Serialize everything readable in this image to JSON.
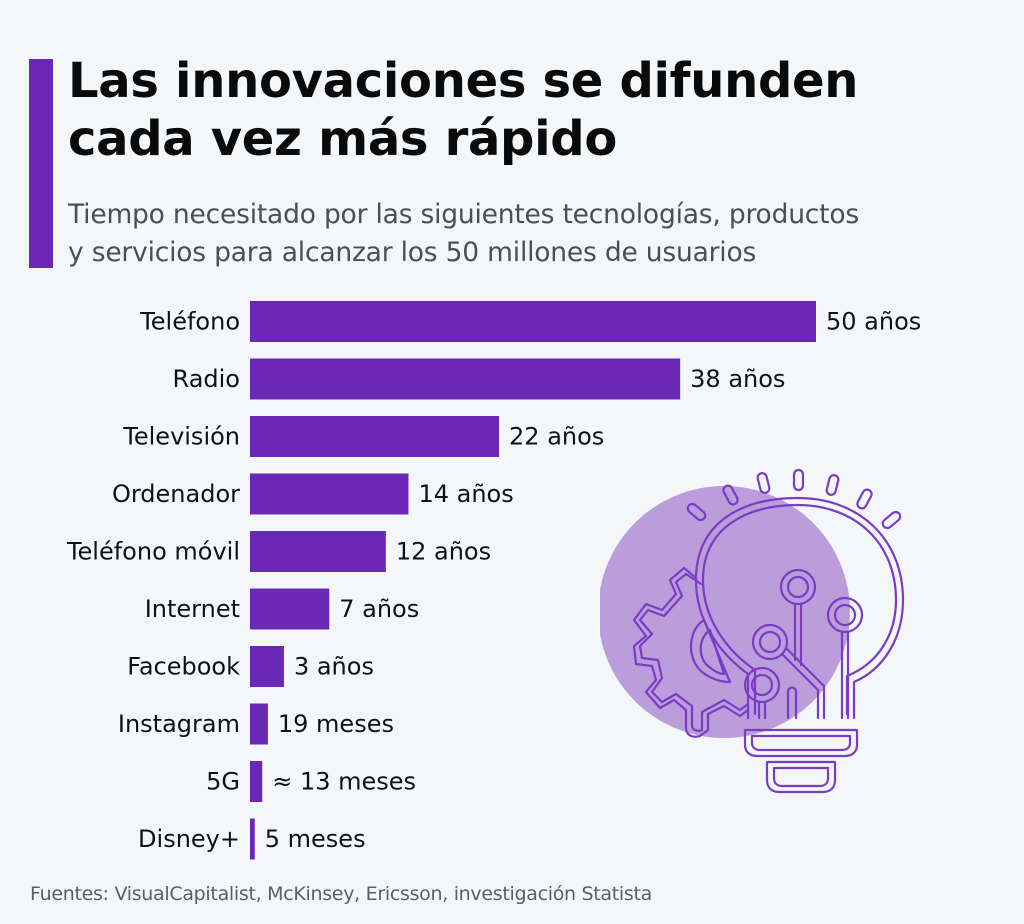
{
  "header": {
    "title_line1": "Las innovaciones se difunden",
    "title_line2": "cada vez más rápido",
    "subtitle_line1": "Tiempo necesitado por las siguientes tecnologías, productos",
    "subtitle_line2": "y servicios para alcanzar los 50 millones de usuarios"
  },
  "colors": {
    "accent": "#6b27b5",
    "bar": "#6b27b5",
    "circle": "#bb9ddc",
    "background": "#f4f7fa",
    "icon_stroke": "#7a3cc4"
  },
  "illustration": {
    "icon": "lightbulb-gear-circuit-icon"
  },
  "chart_data": {
    "type": "bar",
    "orientation": "horizontal",
    "title": "Las innovaciones se difunden cada vez más rápido",
    "subtitle": "Tiempo necesitado por las siguientes tecnologías, productos y servicios para alcanzar los 50 millones de usuarios",
    "xlabel": "",
    "ylabel": "",
    "unit": "años",
    "xlim": [
      0,
      50
    ],
    "grid": false,
    "legend": "none",
    "categories": [
      "Teléfono",
      "Radio",
      "Televisión",
      "Ordenador",
      "Teléfono móvil",
      "Internet",
      "Facebook",
      "Instagram",
      "5G",
      "Disney+"
    ],
    "values": [
      50,
      38,
      22,
      14,
      12,
      7,
      3,
      1.58,
      1.08,
      0.42
    ],
    "value_labels": [
      "50 años",
      "38 años",
      "22 años",
      "14 años",
      "12 años",
      "7 años",
      "3 años",
      "19 meses",
      "≈ 13 meses",
      "5 meses"
    ]
  },
  "footer": {
    "source": "Fuentes: VisualCapitalist, McKinsey, Ericsson, investigación Statista"
  }
}
